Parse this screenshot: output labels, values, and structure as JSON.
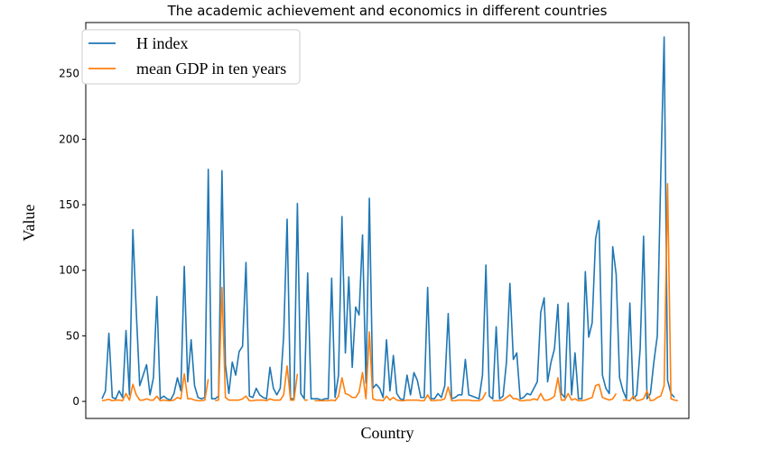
{
  "chart_data": {
    "type": "line",
    "title": "The academic achievement and economics in different countries",
    "xlabel": "Country",
    "ylabel": "Value",
    "ylim": [
      -13,
      289
    ],
    "yticks": [
      0,
      50,
      100,
      150,
      200,
      250
    ],
    "ytick_labels": [
      "0",
      "50",
      "100",
      "150",
      "200",
      "250"
    ],
    "grid": false,
    "legend_position": "upper-left",
    "series": [
      {
        "name": "H index",
        "color": "#1f77b4",
        "values": [
          2,
          8,
          52,
          3,
          2,
          8,
          3,
          54,
          5,
          131,
          68,
          12,
          20,
          28,
          5,
          18,
          80,
          2,
          4,
          2,
          1,
          6,
          18,
          8,
          103,
          15,
          47,
          12,
          3,
          2,
          3,
          177,
          2,
          2,
          4,
          176,
          28,
          6,
          30,
          20,
          38,
          42,
          106,
          4,
          3,
          10,
          5,
          3,
          2,
          26,
          10,
          5,
          10,
          50,
          139,
          2,
          2,
          151,
          6,
          2,
          98,
          2,
          2,
          2,
          1,
          2,
          2,
          94,
          3,
          20,
          141,
          37,
          95,
          26,
          72,
          66,
          127,
          14,
          155,
          10,
          13,
          10,
          3,
          47,
          8,
          35,
          6,
          2,
          1,
          20,
          5,
          22,
          16,
          3,
          3,
          87,
          2,
          2,
          6,
          3,
          12,
          67,
          2,
          3,
          5,
          5,
          32,
          5,
          4,
          3,
          2,
          20,
          104,
          4,
          2,
          57,
          2,
          4,
          30,
          90,
          32,
          37,
          2,
          3,
          6,
          5,
          10,
          15,
          68,
          79,
          15,
          30,
          40,
          74,
          6,
          3,
          75,
          5,
          37,
          2,
          2,
          99,
          49,
          60,
          124,
          138,
          20,
          10,
          6,
          118,
          97,
          18,
          8,
          2,
          75,
          2,
          5,
          40,
          126,
          2,
          6,
          30,
          50,
          170,
          278,
          16,
          6,
          3
        ]
      },
      {
        "name": "mean GDP in ten years",
        "color": "#ff7f0e",
        "values": [
          0.5,
          1,
          1.5,
          0.5,
          1,
          1,
          0.5,
          6,
          1,
          13,
          5,
          1,
          1,
          2,
          1,
          1,
          4,
          0.5,
          1,
          0.5,
          0.5,
          1,
          3,
          2,
          21,
          2,
          2,
          1,
          0.5,
          0.5,
          1,
          17,
          null,
          0.5,
          1,
          87,
          3,
          1,
          1,
          1,
          1,
          2,
          4,
          0.5,
          0.5,
          1,
          1,
          1,
          0.5,
          2,
          1,
          1,
          1,
          5,
          27,
          1,
          1,
          21,
          null,
          1,
          1,
          null,
          0.5,
          0.5,
          0.5,
          0.5,
          0.5,
          1,
          0.5,
          4,
          18,
          6,
          5,
          3,
          3,
          7,
          22,
          2,
          53,
          2,
          1,
          1,
          0.5,
          4,
          1,
          3,
          1,
          0.5,
          0.5,
          1,
          1,
          1,
          1,
          0.5,
          0.5,
          5,
          0.5,
          0.5,
          1,
          1,
          2,
          11,
          0.5,
          0.5,
          1,
          1,
          1,
          1,
          0.5,
          0.5,
          0.5,
          2,
          7,
          null,
          0.5,
          0.5,
          0.5,
          1,
          3,
          5,
          2,
          2,
          0.5,
          0.5,
          1,
          1,
          2,
          1,
          6,
          1,
          1,
          2,
          4,
          18,
          1,
          1,
          6,
          1,
          2,
          0.5,
          0.5,
          1,
          2,
          3,
          12,
          13,
          3,
          2,
          1,
          2,
          6,
          null,
          1,
          1,
          0.5,
          4,
          0.5,
          1,
          2,
          8,
          0.5,
          1,
          3,
          4,
          12,
          166,
          2,
          1,
          0.5
        ]
      }
    ]
  }
}
